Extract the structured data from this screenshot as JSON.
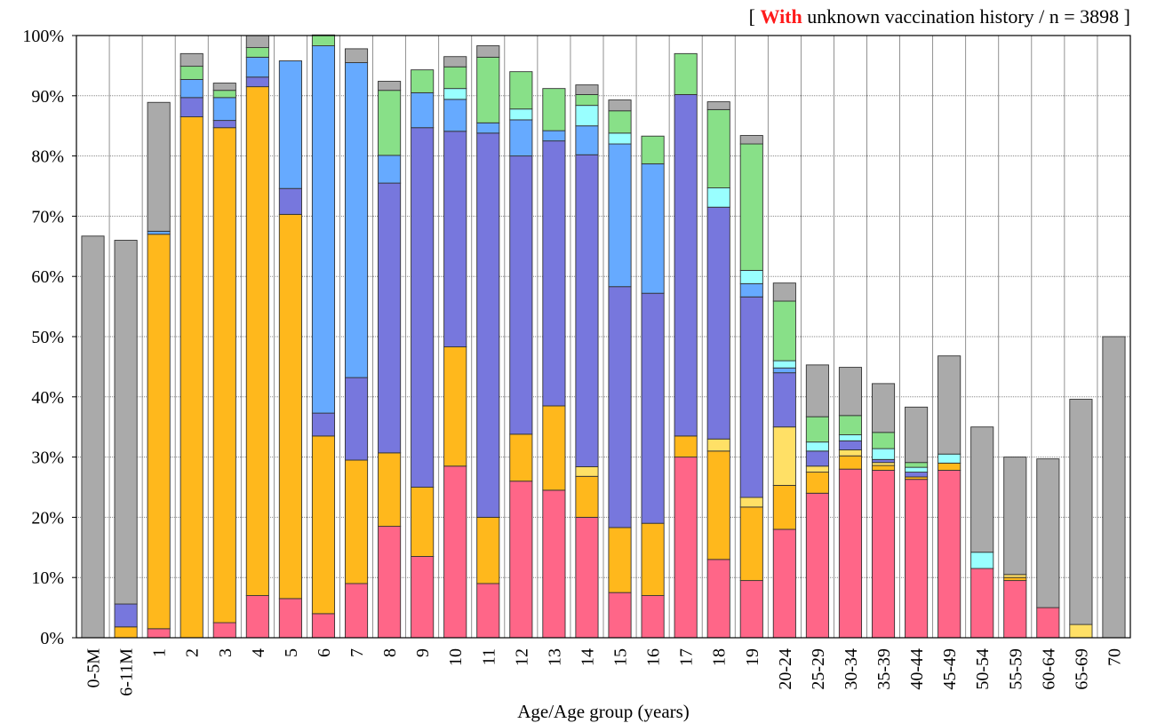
{
  "title": {
    "open": "[ ",
    "highlight": "With",
    "rest": " unknown vaccination history / n = 3898 ]"
  },
  "chart_data": {
    "type": "bar",
    "stacked": true,
    "title": "[ With unknown vaccination history / n = 3898 ]",
    "xlabel": "Age/Age group (years)",
    "ylabel": "",
    "ylim": [
      0,
      100
    ],
    "y_ticks": [
      "0%",
      "10%",
      "20%",
      "30%",
      "40%",
      "50%",
      "60%",
      "70%",
      "80%",
      "90%",
      "100%"
    ],
    "grid": "horizontal dotted",
    "legend": "none",
    "categories": [
      "0-5M",
      "6-11M",
      "1",
      "2",
      "3",
      "4",
      "5",
      "6",
      "7",
      "8",
      "9",
      "10",
      "11",
      "12",
      "13",
      "14",
      "15",
      "16",
      "17",
      "18",
      "19",
      "20-24",
      "25-29",
      "30-34",
      "35-39",
      "40-44",
      "45-49",
      "50-54",
      "55-59",
      "60-64",
      "65-69",
      "70"
    ],
    "series": [
      {
        "color": "#ff6688",
        "values": [
          0,
          0,
          1.5,
          0,
          2.5,
          7,
          6.5,
          4,
          9,
          18.5,
          13.5,
          28.5,
          9,
          26,
          24.5,
          20,
          7.5,
          7,
          30,
          13,
          9.5,
          18,
          24,
          28,
          27.8,
          26.3,
          27.8,
          11.5,
          9.5,
          5,
          0,
          0
        ]
      },
      {
        "color": "#ffb81c",
        "values": [
          0,
          1.8,
          65.5,
          86.5,
          82.2,
          84.5,
          63.8,
          29.5,
          20.5,
          12.2,
          11.5,
          19.8,
          11,
          7.8,
          14,
          6.8,
          10.8,
          12,
          3.5,
          18,
          12.2,
          7.3,
          3.5,
          2.2,
          0.8,
          0.4,
          1.2,
          0,
          0.5,
          0,
          0,
          0
        ]
      },
      {
        "color": "#ffe066",
        "values": [
          0,
          0,
          0,
          0,
          0,
          0,
          0,
          0,
          0,
          0,
          0,
          0,
          0,
          0,
          0,
          1.6,
          0,
          0,
          0,
          2,
          1.6,
          9.7,
          1,
          1,
          0.5,
          0,
          0,
          0,
          0.5,
          0,
          2.2,
          0
        ]
      },
      {
        "color": "#7777dd",
        "values": [
          0,
          3.8,
          0,
          3.2,
          1.2,
          1.6,
          4.3,
          3.8,
          13.7,
          44.8,
          59.7,
          35.8,
          63.8,
          46.2,
          44,
          51.8,
          40,
          38.2,
          56.7,
          38.5,
          33.3,
          9,
          2.5,
          1.5,
          0.5,
          0.8,
          0,
          0,
          0,
          0,
          0,
          0
        ]
      },
      {
        "color": "#66aaff",
        "values": [
          0,
          0,
          0.5,
          3,
          3.8,
          3.3,
          21.2,
          61,
          52.3,
          4.6,
          5.8,
          5.3,
          1.7,
          6,
          1.7,
          4.8,
          23.7,
          21.5,
          0,
          0,
          2.2,
          0.8,
          0,
          0,
          0,
          0,
          0,
          0,
          0,
          0,
          0,
          0
        ]
      },
      {
        "color": "#99ffff",
        "values": [
          0,
          0,
          0,
          0,
          0,
          0,
          0,
          0,
          0,
          0,
          0,
          1.8,
          0,
          1.8,
          0,
          3.4,
          1.8,
          0,
          0,
          3.2,
          2.2,
          1.2,
          1.5,
          1,
          1.8,
          0.8,
          1.5,
          2.7,
          0,
          0,
          0,
          0
        ]
      },
      {
        "color": "#88e088",
        "values": [
          0,
          0,
          0,
          2.2,
          1.2,
          1.6,
          0,
          1.8,
          0,
          10.8,
          3.8,
          3.6,
          10.9,
          6.2,
          7,
          1.8,
          3.7,
          4.6,
          6.8,
          13,
          21,
          9.9,
          4.2,
          3.2,
          2.7,
          0.8,
          0,
          0,
          0,
          0,
          0,
          0
        ]
      },
      {
        "color": "#aaaaaa",
        "values": [
          66.7,
          60.4,
          21.4,
          2.1,
          1.2,
          2.0,
          0,
          0,
          2.3,
          1.5,
          0,
          1.7,
          1.9,
          0,
          0,
          1.6,
          1.8,
          0,
          0,
          1.3,
          1.4,
          3,
          8.6,
          8,
          8.1,
          9.2,
          16.3,
          20.8,
          19.5,
          24.7,
          37.4,
          50
        ]
      }
    ]
  }
}
